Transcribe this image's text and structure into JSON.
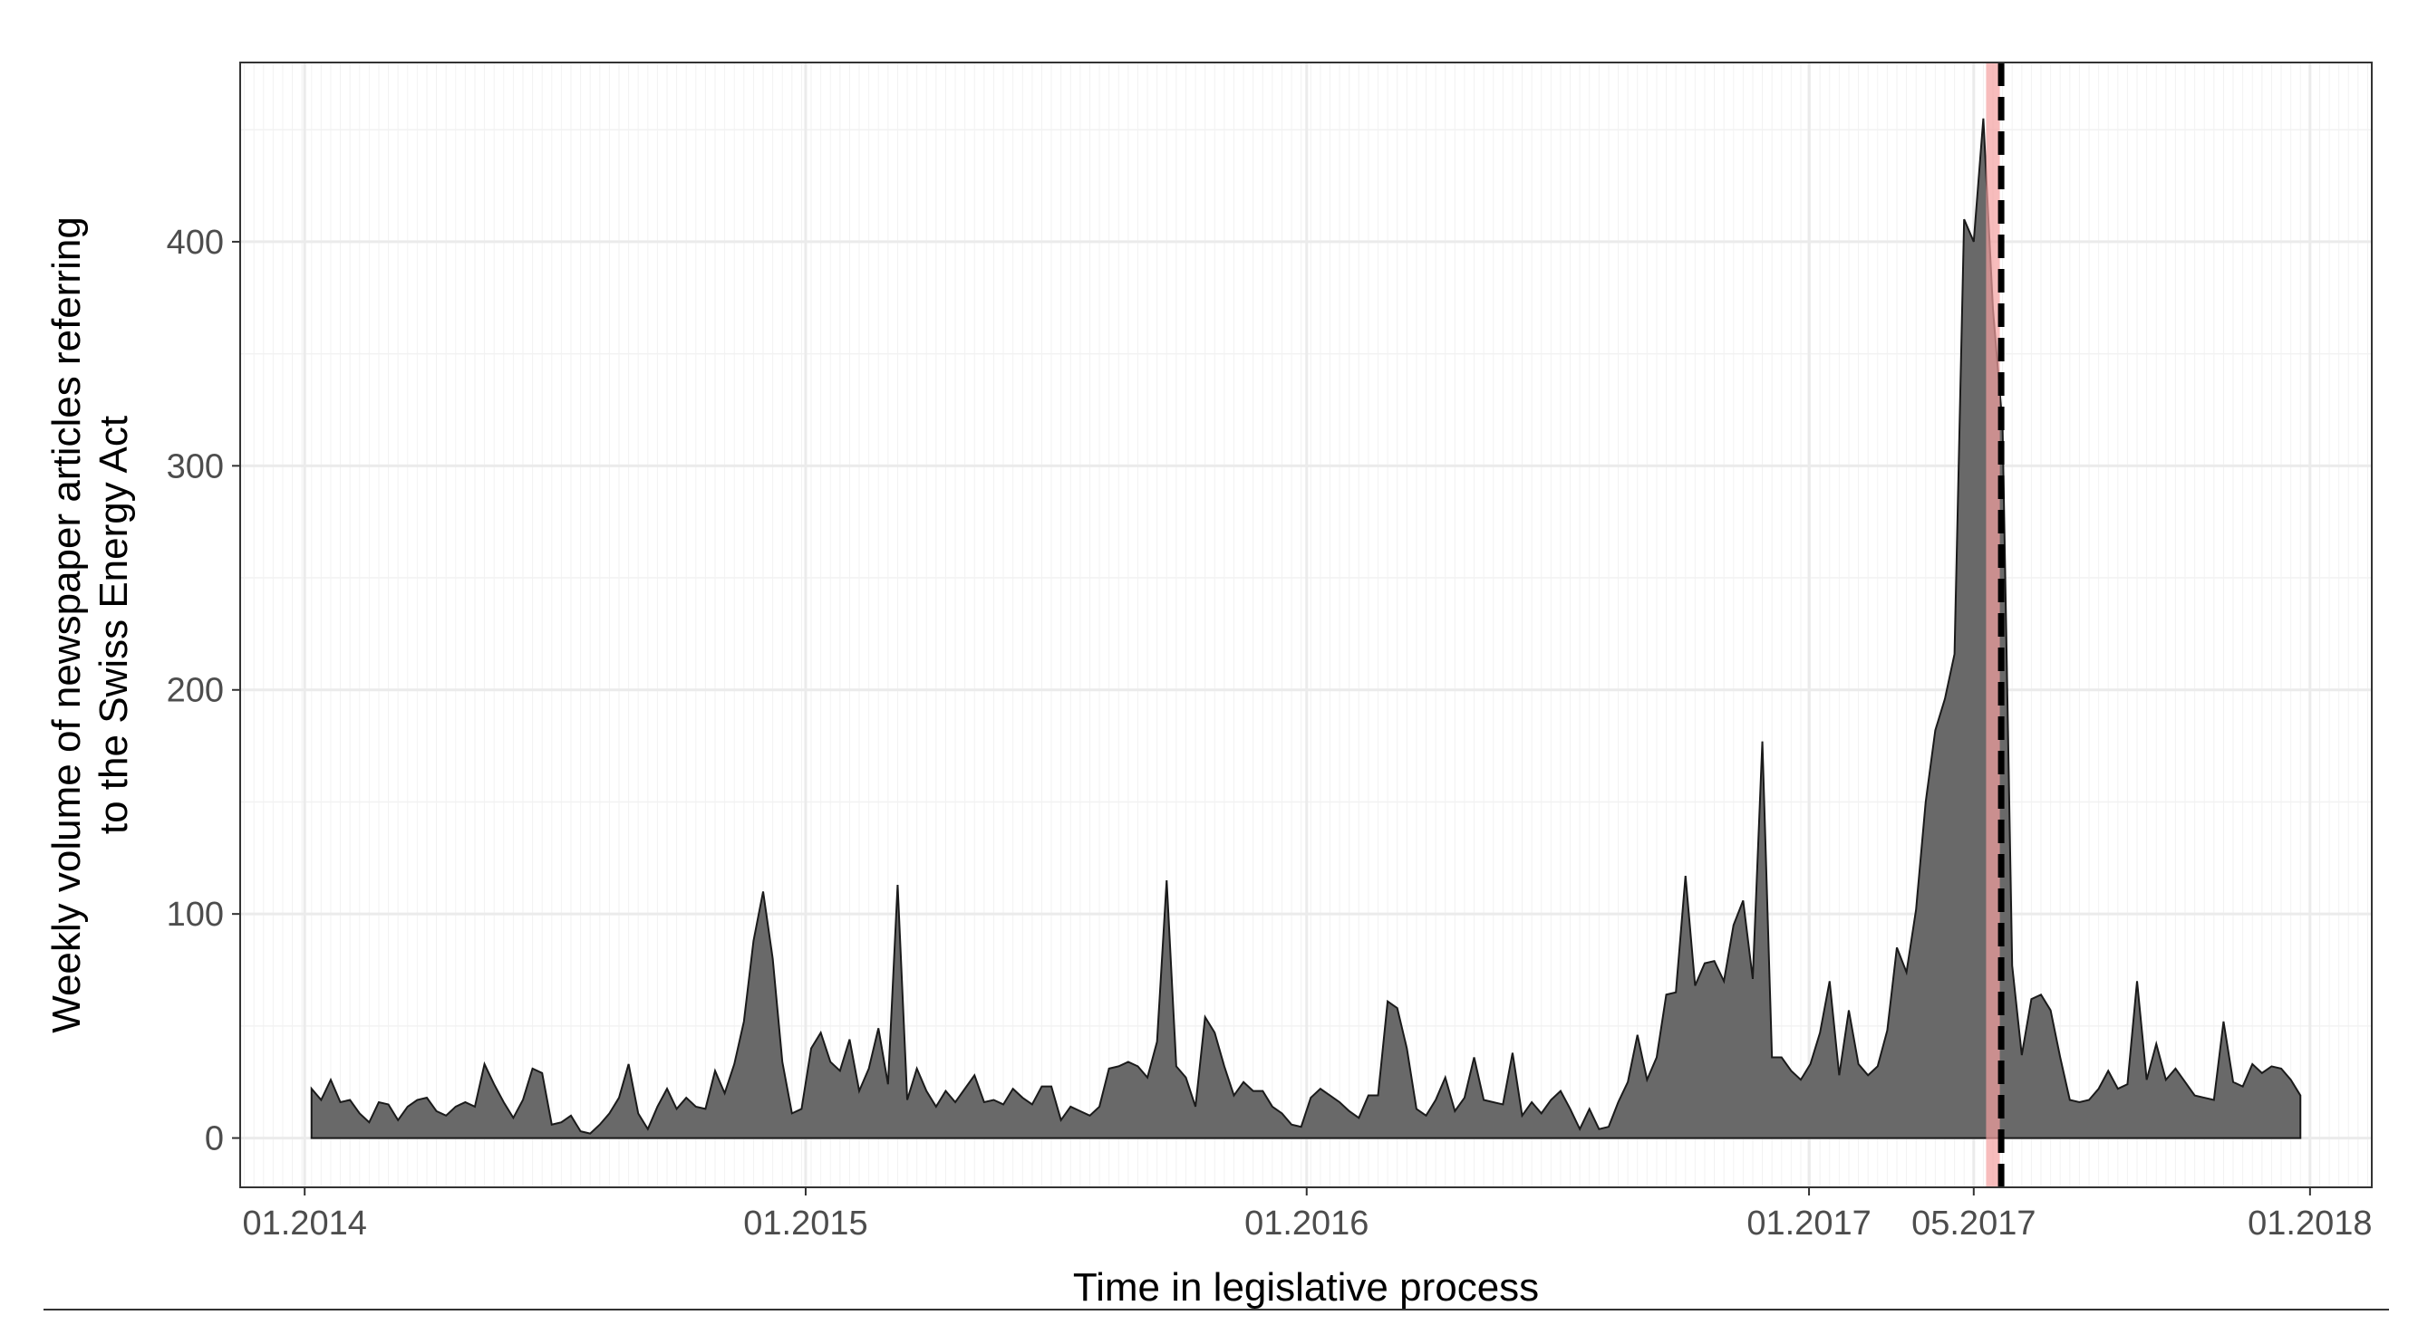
{
  "chart_data": {
    "type": "area",
    "title": "",
    "xlabel": "Time in legislative process",
    "ylabel_lines": [
      "Weekly volume of newspaper articles referring",
      "to the Swiss Energy Act"
    ],
    "x_start": "2014-01-06",
    "x_interval_days": 7,
    "xlim": [
      "2013-11-15",
      "2018-02-15"
    ],
    "ylim": [
      -22,
      480
    ],
    "y_ticks": [
      0,
      100,
      200,
      300,
      400
    ],
    "y_tick_labels": [
      "0",
      "100",
      "200",
      "300",
      "400"
    ],
    "x_ticks": [
      {
        "date": "2014-01-01",
        "label": "01.2014"
      },
      {
        "date": "2015-01-01",
        "label": "01.2015"
      },
      {
        "date": "2016-01-01",
        "label": "01.2016"
      },
      {
        "date": "2017-01-01",
        "label": "01.2017"
      },
      {
        "date": "2017-05-01",
        "label": "05.2017"
      },
      {
        "date": "2018-01-01",
        "label": "01.2018"
      }
    ],
    "grid": true,
    "legend": "none",
    "highlight_band": {
      "from": "2017-05-10",
      "to": "2017-05-20",
      "color": "#f4a0a0"
    },
    "vertical_line": {
      "date": "2017-05-21",
      "style": "dashed",
      "color": "#000000"
    },
    "area_fill": "#696969",
    "area_stroke": "#1a1a1a",
    "values": [
      22,
      17,
      26,
      16,
      17,
      11,
      7,
      16,
      15,
      8,
      14,
      17,
      18,
      12,
      10,
      14,
      16,
      14,
      33,
      24,
      16,
      9,
      17,
      31,
      29,
      6,
      7,
      10,
      3,
      2,
      6,
      11,
      18,
      33,
      11,
      4,
      14,
      22,
      13,
      18,
      14,
      13,
      30,
      20,
      33,
      52,
      88,
      110,
      80,
      34,
      11,
      13,
      40,
      47,
      34,
      30,
      44,
      21,
      31,
      49,
      24,
      113,
      17,
      31,
      21,
      14,
      21,
      16,
      22,
      28,
      16,
      17,
      15,
      22,
      18,
      15,
      23,
      23,
      8,
      14,
      12,
      10,
      14,
      31,
      32,
      34,
      32,
      27,
      43,
      115,
      32,
      27,
      14,
      54,
      47,
      32,
      19,
      25,
      21,
      21,
      14,
      11,
      6,
      5,
      18,
      22,
      19,
      16,
      12,
      9,
      19,
      19,
      61,
      58,
      40,
      13,
      10,
      17,
      27,
      12,
      18,
      36,
      17,
      16,
      15,
      38,
      10,
      16,
      11,
      17,
      21,
      13,
      4,
      13,
      4,
      5,
      16,
      25,
      46,
      26,
      36,
      64,
      65,
      117,
      68,
      78,
      79,
      70,
      95,
      106,
      71,
      177,
      36,
      36,
      30,
      26,
      33,
      47,
      70,
      28,
      57,
      33,
      28,
      32,
      48,
      85,
      74,
      102,
      150,
      182,
      196,
      216,
      410,
      400,
      455,
      370,
      318,
      77,
      37,
      62,
      64,
      57,
      36,
      17,
      16,
      17,
      22,
      30,
      22,
      24,
      70,
      26,
      42,
      26,
      31,
      25,
      19,
      18,
      17,
      52,
      25,
      23,
      33,
      29,
      32,
      31,
      26,
      19
    ]
  }
}
